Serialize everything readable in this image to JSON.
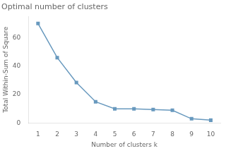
{
  "chart_data": {
    "type": "line",
    "title": "Optimal number of clusters",
    "xlabel": "Number of clusters k",
    "ylabel": "Total Within-Sum of Square",
    "x": [
      1,
      2,
      3,
      4,
      5,
      6,
      7,
      8,
      9,
      10
    ],
    "values": [
      70,
      46,
      28.5,
      15,
      10,
      10,
      9.5,
      9,
      3,
      2
    ],
    "color": "#6899be",
    "marker": "square",
    "xlim": [
      0.5,
      10.5
    ],
    "ylim": [
      0,
      75
    ],
    "xticks": [
      1,
      2,
      3,
      4,
      5,
      6,
      7,
      8,
      9,
      10
    ],
    "yticks": [
      0,
      20,
      40,
      60
    ],
    "grid": false
  }
}
